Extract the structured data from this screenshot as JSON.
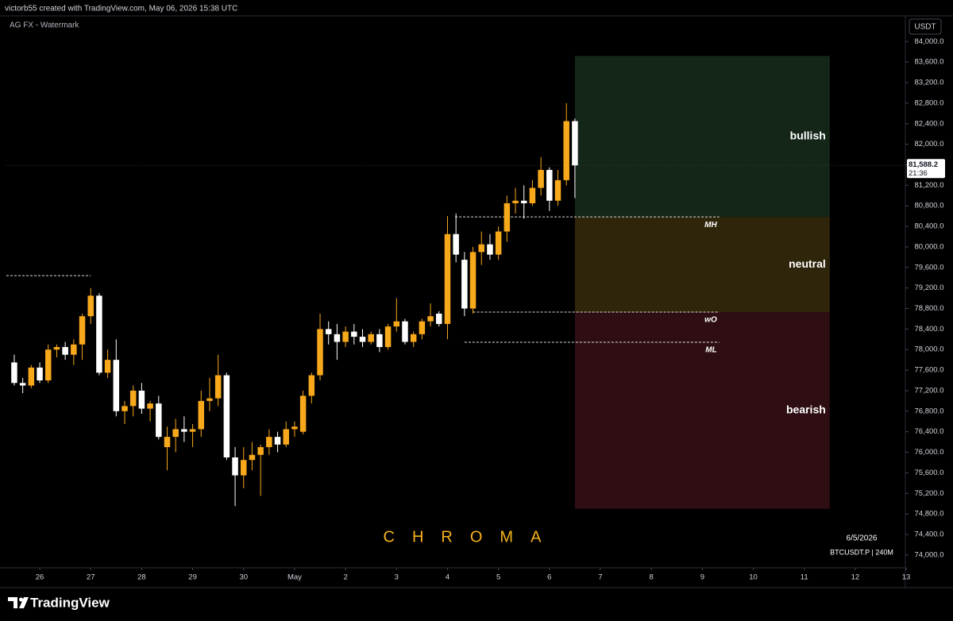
{
  "header": {
    "credit": "victorb55 created with TradingView.com, May 06, 2026 15:38 UTC",
    "indicator": "AG FX - Watermark",
    "currency": "USDT",
    "watermark": "CHROMA",
    "date": "6/5/2026",
    "symbol": "BTCUSDT.P | 240M",
    "brand": "TradingView"
  },
  "chart_data": {
    "type": "candlestick",
    "x": [
      -3,
      -2,
      -1,
      0,
      1,
      2,
      3,
      4,
      5,
      6,
      7,
      8,
      9,
      10,
      11,
      12,
      13,
      14,
      15,
      16,
      17,
      18,
      19,
      20,
      21,
      22,
      23,
      24,
      25,
      26,
      27,
      28,
      29,
      30,
      31,
      32,
      33,
      34,
      35,
      36,
      37,
      38,
      39,
      40,
      41,
      42,
      43,
      44,
      45,
      46,
      47,
      48,
      49,
      50,
      51,
      52,
      53,
      54,
      55,
      56,
      57,
      58,
      59,
      60,
      61,
      62,
      63
    ],
    "open": [
      77750,
      77350,
      77300,
      77650,
      77400,
      78000,
      78050,
      77900,
      78100,
      78650,
      79050,
      77550,
      77800,
      76800,
      76900,
      77200,
      76850,
      76950,
      76100,
      76300,
      76450,
      76400,
      76450,
      77000,
      77050,
      77500,
      75900,
      75550,
      75850,
      75950,
      76100,
      76300,
      76150,
      76450,
      76400,
      77100,
      77500,
      78400,
      78300,
      78150,
      78350,
      78250,
      78150,
      78300,
      78050,
      78450,
      78550,
      78150,
      78300,
      78550,
      78700,
      78500,
      80250,
      79750,
      78800,
      79900,
      80050,
      79850,
      80300,
      80850,
      80900,
      80850,
      81150,
      81500,
      80900,
      81300,
      82450
    ],
    "high": [
      77900,
      77450,
      77700,
      77750,
      78100,
      78100,
      78150,
      78200,
      78700,
      79200,
      79100,
      78000,
      78200,
      77000,
      77300,
      77350,
      77000,
      77100,
      76500,
      76650,
      76700,
      76550,
      77200,
      77450,
      77900,
      77550,
      76100,
      76100,
      76200,
      76150,
      76450,
      76400,
      76600,
      76600,
      77200,
      77550,
      78700,
      78550,
      78500,
      78450,
      78500,
      78400,
      78350,
      78400,
      78500,
      79000,
      78600,
      78350,
      78600,
      78900,
      78750,
      80600,
      80650,
      79900,
      80000,
      80300,
      80250,
      80400,
      81000,
      81150,
      81200,
      81300,
      81750,
      81550,
      81500,
      82800,
      82500
    ],
    "low": [
      77300,
      77150,
      77250,
      77350,
      77350,
      77850,
      77800,
      77700,
      77800,
      78500,
      77500,
      77450,
      76700,
      76550,
      76700,
      76750,
      76600,
      76250,
      75650,
      76000,
      76200,
      76100,
      76300,
      76800,
      76900,
      75850,
      74950,
      75300,
      75650,
      75150,
      75950,
      76000,
      76100,
      76300,
      76350,
      76950,
      77400,
      78100,
      77800,
      78050,
      78100,
      78050,
      78100,
      77950,
      78000,
      78350,
      78100,
      78050,
      78200,
      78450,
      78450,
      78200,
      79700,
      78650,
      78700,
      79650,
      79750,
      79750,
      80100,
      80650,
      80550,
      80800,
      81000,
      80700,
      80800,
      81200,
      80950
    ],
    "close": [
      77350,
      77300,
      77650,
      77400,
      78000,
      78050,
      77900,
      78100,
      78650,
      79050,
      77550,
      77800,
      76800,
      76900,
      77200,
      76850,
      76950,
      76300,
      76300,
      76450,
      76400,
      76450,
      77000,
      77050,
      77500,
      75900,
      75550,
      75850,
      75950,
      76100,
      76300,
      76150,
      76450,
      76500,
      77100,
      77500,
      78400,
      78300,
      78150,
      78350,
      78250,
      78150,
      78300,
      78050,
      78450,
      78550,
      78150,
      78300,
      78550,
      78650,
      78500,
      80250,
      79850,
      78800,
      79900,
      80050,
      79850,
      80300,
      80850,
      80900,
      80850,
      81150,
      81500,
      80900,
      81300,
      82450,
      81588.2
    ],
    "up_color": "#f7a81b",
    "down_color": "#ffffff",
    "xlim": [
      -3.93,
      101.9
    ],
    "xticks": [
      {
        "value": 0,
        "label": "26"
      },
      {
        "value": 6,
        "label": "27"
      },
      {
        "value": 12,
        "label": "28"
      },
      {
        "value": 18,
        "label": "29"
      },
      {
        "value": 24,
        "label": "30"
      },
      {
        "value": 30,
        "label": "May"
      },
      {
        "value": 36,
        "label": "2"
      },
      {
        "value": 42,
        "label": "3"
      },
      {
        "value": 48,
        "label": "4"
      },
      {
        "value": 54,
        "label": "5"
      },
      {
        "value": 60,
        "label": "6"
      },
      {
        "value": 66,
        "label": "7"
      },
      {
        "value": 72,
        "label": "8"
      },
      {
        "value": 78,
        "label": "9"
      },
      {
        "value": 84,
        "label": "10"
      },
      {
        "value": 90,
        "label": "11"
      },
      {
        "value": 96,
        "label": "12"
      },
      {
        "value": 102,
        "label": "13"
      }
    ],
    "ylim": [
      73750,
      84500
    ],
    "yticks": [
      {
        "value": 74000,
        "label": "74,000.0"
      },
      {
        "value": 74400,
        "label": "74,400.0"
      },
      {
        "value": 74800,
        "label": "74,800.0"
      },
      {
        "value": 75200,
        "label": "75,200.0"
      },
      {
        "value": 75600,
        "label": "75,600.0"
      },
      {
        "value": 76000,
        "label": "76,000.0"
      },
      {
        "value": 76400,
        "label": "76,400.0"
      },
      {
        "value": 76800,
        "label": "76,800.0"
      },
      {
        "value": 77200,
        "label": "77,200.0"
      },
      {
        "value": 77600,
        "label": "77,600.0"
      },
      {
        "value": 78000,
        "label": "78,000.0"
      },
      {
        "value": 78400,
        "label": "78,400.0"
      },
      {
        "value": 78800,
        "label": "78,800.0"
      },
      {
        "value": 79200,
        "label": "79,200.0"
      },
      {
        "value": 79600,
        "label": "79,600.0"
      },
      {
        "value": 80000,
        "label": "80,000.0"
      },
      {
        "value": 80400,
        "label": "80,400.0"
      },
      {
        "value": 80800,
        "label": "80,800.0"
      },
      {
        "value": 81200,
        "label": "81,200.0"
      },
      {
        "value": 81600,
        "label": "81,600.0"
      },
      {
        "value": 82000,
        "label": "82,000.0"
      },
      {
        "value": 82400,
        "label": "82,400.0"
      },
      {
        "value": 82800,
        "label": "82,800.0"
      },
      {
        "value": 83200,
        "label": "83,200.0"
      },
      {
        "value": 83600,
        "label": "83,600.0"
      },
      {
        "value": 84000,
        "label": "84,000.0"
      }
    ],
    "last_price": {
      "value": 81588.2,
      "label": "81,588.2"
    },
    "countdown": "21:36",
    "zones": [
      {
        "label": "bullish",
        "low": 80584,
        "high": 83720,
        "x0": 63,
        "x1": 93,
        "color": "#142617"
      },
      {
        "label": "neutral",
        "low": 78730,
        "high": 80584,
        "x0": 63,
        "x1": 93,
        "color": "#2f250a"
      },
      {
        "label": "bearish",
        "low": 74900,
        "high": 78730,
        "x0": 63,
        "x1": 93,
        "color": "#2e0e13"
      }
    ],
    "levels": [
      {
        "label": "MH",
        "value": 80584,
        "x0": 48.9,
        "x1": 80
      },
      {
        "label": "wO",
        "value": 78730,
        "x0": 51,
        "x1": 80
      },
      {
        "label": "ML",
        "value": 78142,
        "x0": 50,
        "x1": 80
      },
      {
        "value": 79440,
        "x0": -3.93,
        "x1": 6
      }
    ]
  }
}
